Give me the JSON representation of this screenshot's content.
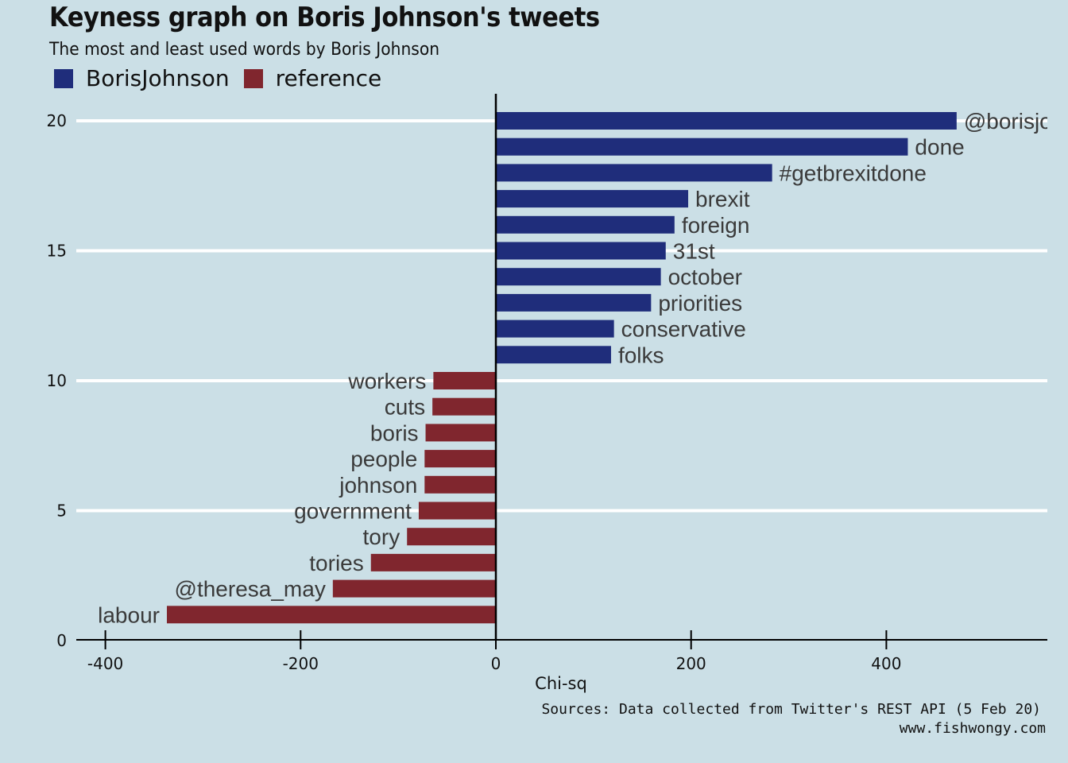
{
  "chart_data": {
    "type": "bar",
    "orientation": "horizontal",
    "title": "Keyness graph on Boris Johnson's tweets",
    "subtitle": "The most and least used words by Boris Johnson",
    "xlabel": "Chi-sq",
    "ylabel": "",
    "xlim": [
      -400,
      550
    ],
    "ylim": [
      0,
      20
    ],
    "xticks": [
      -400,
      -200,
      0,
      200,
      400
    ],
    "yticks": [
      0,
      5,
      10,
      15,
      20
    ],
    "grid": "horizontal",
    "legend_position": "top-left",
    "series": [
      {
        "name": "BorisJohnson",
        "color": "#1f2d7b"
      },
      {
        "name": "reference",
        "color": "#80262e"
      }
    ],
    "bars": [
      {
        "word": "@borisjohnson",
        "value": 472,
        "rank": 20,
        "series": "BorisJohnson"
      },
      {
        "word": "done",
        "value": 422,
        "rank": 19,
        "series": "BorisJohnson"
      },
      {
        "word": "#getbrexitdone",
        "value": 283,
        "rank": 18,
        "series": "BorisJohnson"
      },
      {
        "word": "brexit",
        "value": 197,
        "rank": 17,
        "series": "BorisJohnson"
      },
      {
        "word": "foreign",
        "value": 183,
        "rank": 16,
        "series": "BorisJohnson"
      },
      {
        "word": "31st",
        "value": 174,
        "rank": 15,
        "series": "BorisJohnson"
      },
      {
        "word": "october",
        "value": 169,
        "rank": 14,
        "series": "BorisJohnson"
      },
      {
        "word": "priorities",
        "value": 159,
        "rank": 13,
        "series": "BorisJohnson"
      },
      {
        "word": "conservative",
        "value": 121,
        "rank": 12,
        "series": "BorisJohnson"
      },
      {
        "word": "folks",
        "value": 118,
        "rank": 11,
        "series": "BorisJohnson"
      },
      {
        "word": "workers",
        "value": -64,
        "rank": 10,
        "series": "reference"
      },
      {
        "word": "cuts",
        "value": -65,
        "rank": 9,
        "series": "reference"
      },
      {
        "word": "boris",
        "value": -72,
        "rank": 8,
        "series": "reference"
      },
      {
        "word": "people",
        "value": -73,
        "rank": 7,
        "series": "reference"
      },
      {
        "word": "johnson",
        "value": -73,
        "rank": 6,
        "series": "reference"
      },
      {
        "word": "government",
        "value": -79,
        "rank": 5,
        "series": "reference"
      },
      {
        "word": "tory",
        "value": -91,
        "rank": 4,
        "series": "reference"
      },
      {
        "word": "tories",
        "value": -128,
        "rank": 3,
        "series": "reference"
      },
      {
        "word": "@theresa_may",
        "value": -167,
        "rank": 2,
        "series": "reference"
      },
      {
        "word": "labour",
        "value": -337,
        "rank": 1,
        "series": "reference"
      }
    ]
  },
  "caption": {
    "source": "Sources: Data collected from Twitter's REST API (5 Feb 20)",
    "site": "www.fishwongy.com"
  }
}
